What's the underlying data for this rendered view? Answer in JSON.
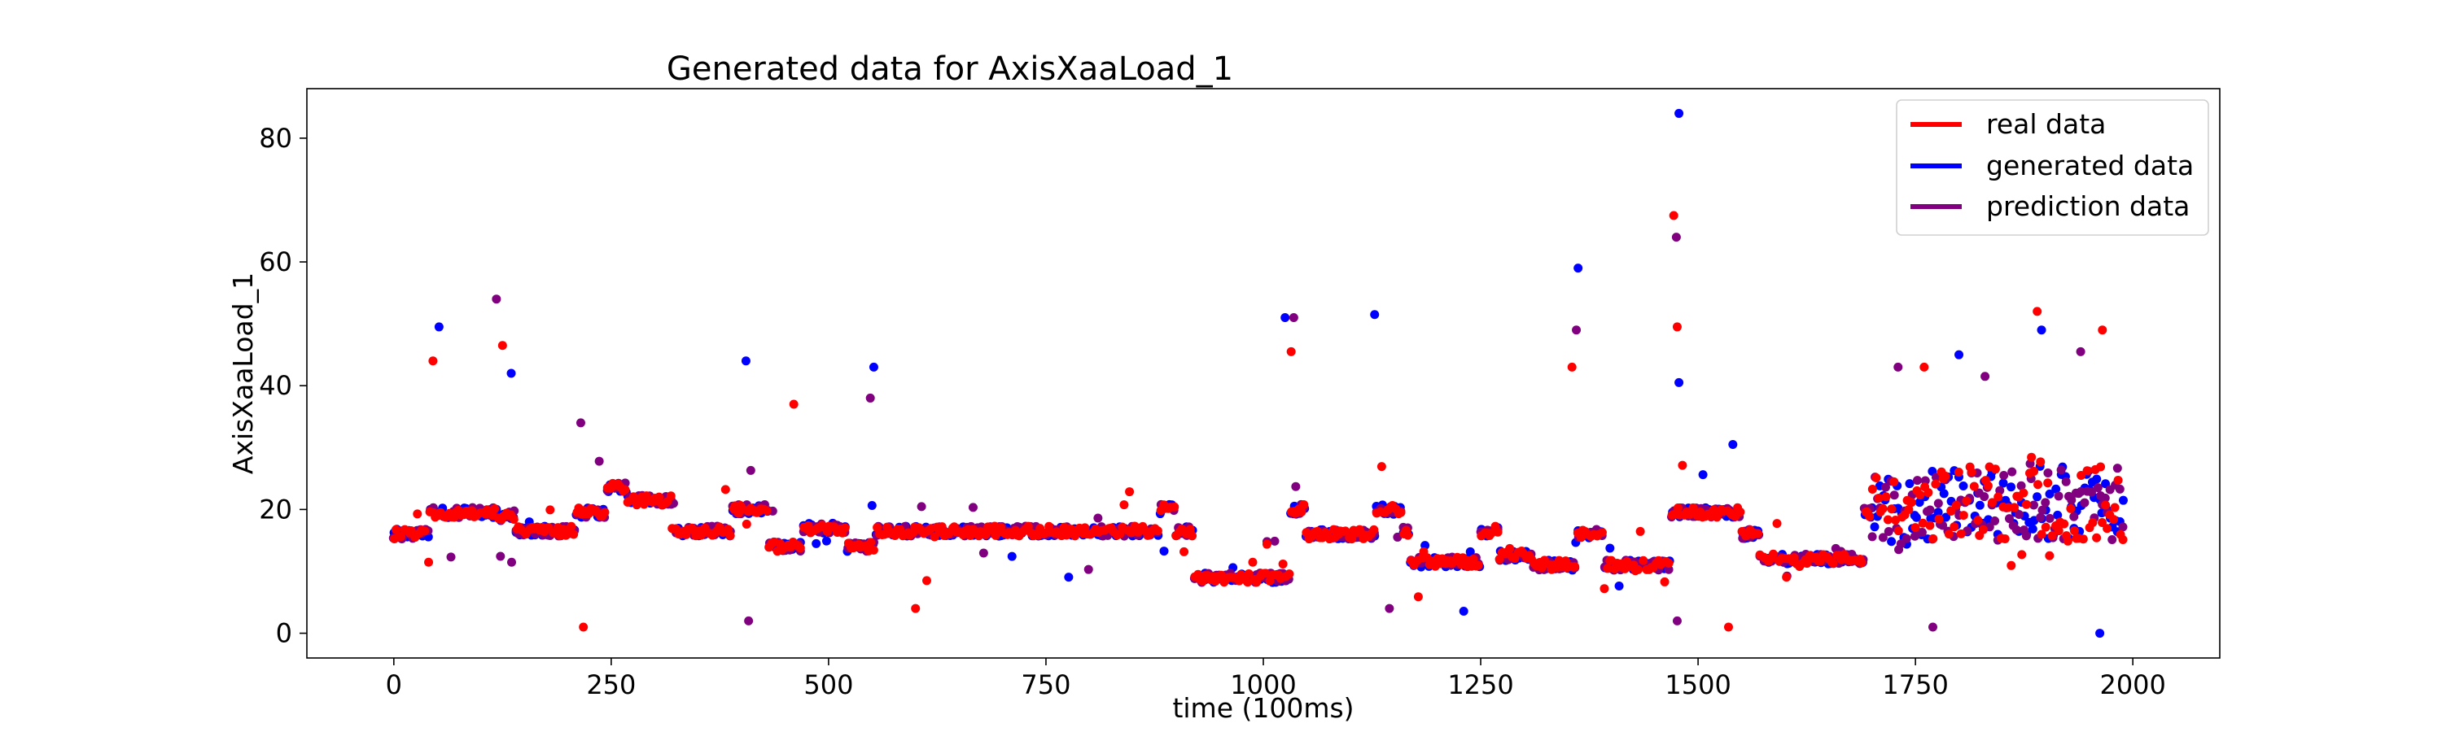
{
  "chart_data": {
    "type": "scatter",
    "title": "Generated data for AxisXaaLoad_1",
    "xlabel": "time (100ms)",
    "ylabel": "AxisXaaLoad_1",
    "xlim": [
      -100,
      2100
    ],
    "ylim": [
      -4,
      88
    ],
    "xticks": [
      0,
      250,
      500,
      750,
      1000,
      1250,
      1500,
      1750,
      2000
    ],
    "yticks": [
      0,
      20,
      40,
      60,
      80
    ],
    "legend_position": "top-right",
    "grid": false,
    "segments": [
      {
        "x0": 0,
        "x1": 40,
        "y": 16
      },
      {
        "x0": 40,
        "x1": 120,
        "y": 19.5
      },
      {
        "x0": 120,
        "x1": 140,
        "y": 19
      },
      {
        "x0": 140,
        "x1": 210,
        "y": 16.5
      },
      {
        "x0": 210,
        "x1": 245,
        "y": 19.5
      },
      {
        "x0": 245,
        "x1": 270,
        "y": 23.5
      },
      {
        "x0": 270,
        "x1": 320,
        "y": 21.5
      },
      {
        "x0": 320,
        "x1": 390,
        "y": 16.5
      },
      {
        "x0": 390,
        "x1": 430,
        "y": 20
      },
      {
        "x0": 430,
        "x1": 470,
        "y": 14
      },
      {
        "x0": 470,
        "x1": 520,
        "y": 17
      },
      {
        "x0": 520,
        "x1": 555,
        "y": 14
      },
      {
        "x0": 555,
        "x1": 880,
        "y": 16.5
      },
      {
        "x0": 880,
        "x1": 900,
        "y": 20
      },
      {
        "x0": 900,
        "x1": 920,
        "y": 16.5
      },
      {
        "x0": 920,
        "x1": 1030,
        "y": 9
      },
      {
        "x0": 1030,
        "x1": 1050,
        "y": 20
      },
      {
        "x0": 1050,
        "x1": 1130,
        "y": 16
      },
      {
        "x0": 1130,
        "x1": 1160,
        "y": 20
      },
      {
        "x0": 1160,
        "x1": 1170,
        "y": 16.5
      },
      {
        "x0": 1170,
        "x1": 1250,
        "y": 11.5
      },
      {
        "x0": 1250,
        "x1": 1270,
        "y": 16.5
      },
      {
        "x0": 1270,
        "x1": 1310,
        "y": 12.5
      },
      {
        "x0": 1310,
        "x1": 1360,
        "y": 11
      },
      {
        "x0": 1360,
        "x1": 1390,
        "y": 16
      },
      {
        "x0": 1390,
        "x1": 1470,
        "y": 11
      },
      {
        "x0": 1470,
        "x1": 1550,
        "y": 19.5
      },
      {
        "x0": 1550,
        "x1": 1570,
        "y": 16
      },
      {
        "x0": 1570,
        "x1": 1690,
        "y": 12
      },
      {
        "x0": 1690,
        "x1": 1750,
        "y": 19.5
      },
      {
        "x0": 1750,
        "x1": 1990,
        "y": 21
      }
    ],
    "spikes": [
      {
        "x": 45,
        "y": 44
      },
      {
        "x": 52,
        "y": 49.5
      },
      {
        "x": 118,
        "y": 54
      },
      {
        "x": 125,
        "y": 46.5
      },
      {
        "x": 135,
        "y": 42
      },
      {
        "x": 215,
        "y": 34
      },
      {
        "x": 218,
        "y": 1
      },
      {
        "x": 405,
        "y": 44
      },
      {
        "x": 408,
        "y": 2
      },
      {
        "x": 460,
        "y": 37
      },
      {
        "x": 552,
        "y": 43
      },
      {
        "x": 548,
        "y": 38
      },
      {
        "x": 600,
        "y": 4
      },
      {
        "x": 1025,
        "y": 51
      },
      {
        "x": 1035,
        "y": 51
      },
      {
        "x": 1032,
        "y": 45.5
      },
      {
        "x": 1128,
        "y": 51.5
      },
      {
        "x": 1145,
        "y": 4
      },
      {
        "x": 1355,
        "y": 43
      },
      {
        "x": 1362,
        "y": 59
      },
      {
        "x": 1360,
        "y": 49
      },
      {
        "x": 1472,
        "y": 67.5
      },
      {
        "x": 1478,
        "y": 84
      },
      {
        "x": 1475,
        "y": 64
      },
      {
        "x": 1476,
        "y": 49.5
      },
      {
        "x": 1478,
        "y": 40.5
      },
      {
        "x": 1476,
        "y": 2
      },
      {
        "x": 1535,
        "y": 1
      },
      {
        "x": 1540,
        "y": 30.5
      },
      {
        "x": 1730,
        "y": 43
      },
      {
        "x": 1760,
        "y": 43
      },
      {
        "x": 1800,
        "y": 45
      },
      {
        "x": 1830,
        "y": 41.5
      },
      {
        "x": 1890,
        "y": 52
      },
      {
        "x": 1895,
        "y": 49
      },
      {
        "x": 1940,
        "y": 45.5
      },
      {
        "x": 1965,
        "y": 49
      },
      {
        "x": 1962,
        "y": 0
      },
      {
        "x": 1770,
        "y": 1
      }
    ],
    "series": [
      {
        "name": "real data",
        "color": "#ff0000"
      },
      {
        "name": "generated data",
        "color": "#0000ff"
      },
      {
        "name": "prediction data",
        "color": "#800080"
      }
    ]
  }
}
